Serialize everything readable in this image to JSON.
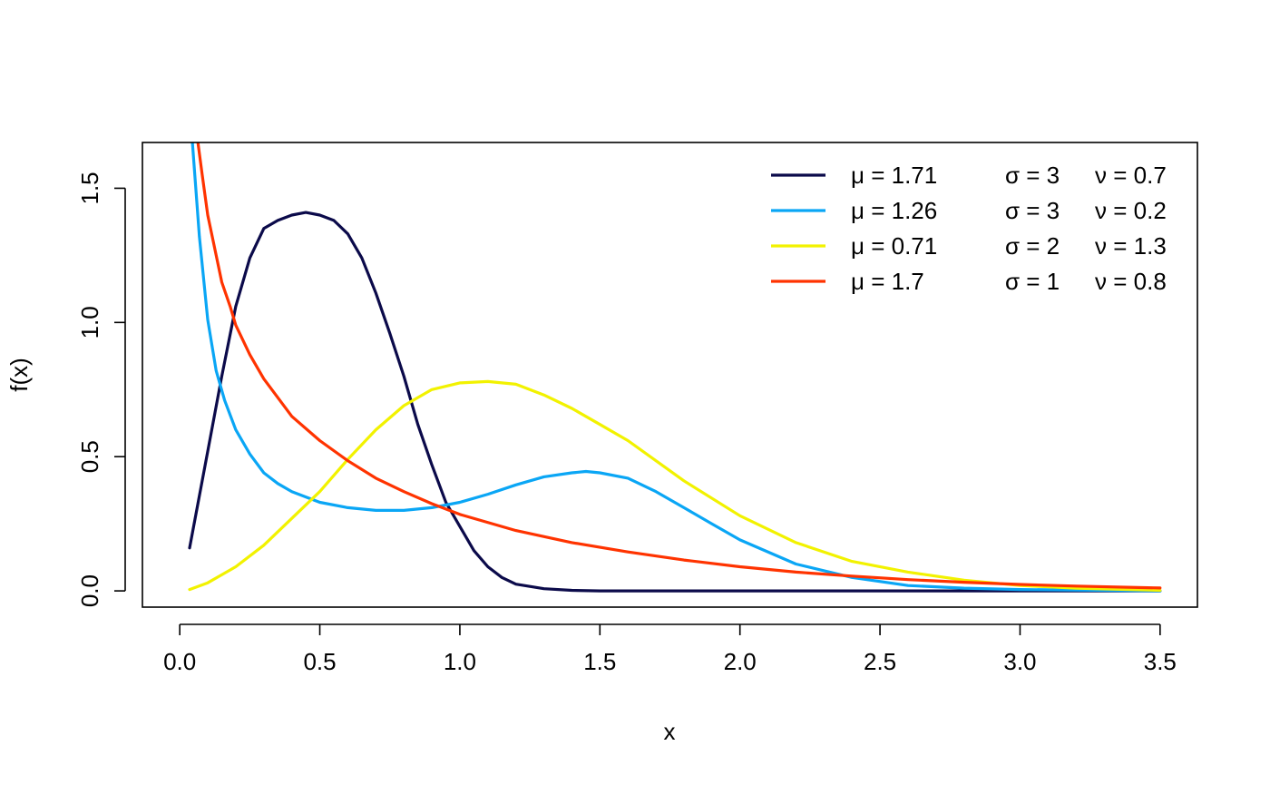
{
  "chart_data": {
    "type": "line",
    "title": "",
    "xlabel": "x",
    "ylabel": "f(x)",
    "xlim": [
      -0.1333,
      3.6333
    ],
    "ylim": [
      -0.0605,
      1.6705
    ],
    "x_ticks": [
      "0.0",
      "0.5",
      "1.0",
      "1.5",
      "2.0",
      "2.5",
      "3.0",
      "3.5"
    ],
    "y_ticks": [
      "0.0",
      "0.5",
      "1.0",
      "1.5"
    ],
    "grid": false,
    "legend_position": "top-right",
    "series": [
      {
        "name": "μ = 1.71      σ = 3   ν = 0.7",
        "legend": {
          "mu": "μ = 1.71",
          "sigma": "σ = 3",
          "nu": "ν = 0.7"
        },
        "color": "#0b0a4a",
        "x": [
          0.035,
          0.1,
          0.15,
          0.2,
          0.25,
          0.3,
          0.35,
          0.4,
          0.45,
          0.5,
          0.55,
          0.6,
          0.65,
          0.7,
          0.75,
          0.8,
          0.85,
          0.9,
          0.95,
          1.0,
          1.05,
          1.1,
          1.15,
          1.2,
          1.3,
          1.4,
          1.5,
          2.0,
          2.5,
          3.0,
          3.5
        ],
        "y": [
          0.16,
          0.52,
          0.8,
          1.06,
          1.24,
          1.35,
          1.38,
          1.4,
          1.41,
          1.4,
          1.38,
          1.33,
          1.24,
          1.11,
          0.96,
          0.8,
          0.62,
          0.47,
          0.33,
          0.24,
          0.15,
          0.09,
          0.05,
          0.025,
          0.008,
          0.002,
          0.0,
          0.0,
          0.0,
          0.0,
          0.0
        ]
      },
      {
        "name": "μ = 1.26      σ = 3   ν = 0.2",
        "legend": {
          "mu": "μ = 1.26",
          "sigma": "σ = 3",
          "nu": "ν = 0.2"
        },
        "color": "#0aa6f5",
        "x": [
          0.045,
          0.07,
          0.1,
          0.13,
          0.16,
          0.2,
          0.25,
          0.3,
          0.35,
          0.4,
          0.5,
          0.6,
          0.7,
          0.8,
          0.9,
          1.0,
          1.1,
          1.2,
          1.3,
          1.4,
          1.45,
          1.5,
          1.6,
          1.7,
          1.8,
          1.9,
          2.0,
          2.2,
          2.4,
          2.6,
          2.8,
          3.0,
          3.5
        ],
        "y": [
          1.67,
          1.32,
          1.01,
          0.82,
          0.71,
          0.6,
          0.51,
          0.44,
          0.4,
          0.37,
          0.33,
          0.31,
          0.3,
          0.3,
          0.31,
          0.33,
          0.36,
          0.395,
          0.425,
          0.44,
          0.445,
          0.44,
          0.42,
          0.37,
          0.31,
          0.25,
          0.19,
          0.1,
          0.05,
          0.02,
          0.01,
          0.005,
          0.0
        ]
      },
      {
        "name": "μ = 0.71      σ = 2   ν = 1.3",
        "legend": {
          "mu": "μ = 0.71",
          "sigma": "σ = 2",
          "nu": "ν = 1.3"
        },
        "color": "#f2f200",
        "x": [
          0.035,
          0.1,
          0.2,
          0.3,
          0.4,
          0.5,
          0.6,
          0.7,
          0.8,
          0.9,
          1.0,
          1.1,
          1.2,
          1.3,
          1.4,
          1.5,
          1.6,
          1.8,
          2.0,
          2.2,
          2.4,
          2.6,
          2.8,
          3.0,
          3.2,
          3.5
        ],
        "y": [
          0.005,
          0.03,
          0.09,
          0.17,
          0.27,
          0.37,
          0.49,
          0.6,
          0.69,
          0.75,
          0.775,
          0.78,
          0.77,
          0.73,
          0.68,
          0.62,
          0.56,
          0.41,
          0.28,
          0.18,
          0.11,
          0.07,
          0.04,
          0.02,
          0.01,
          0.002
        ]
      },
      {
        "name": "μ = 1.7        σ = 1   ν = 0.8",
        "legend": {
          "mu": "μ = 1.7",
          "sigma": "σ = 1",
          "nu": "ν = 0.8"
        },
        "color": "#ff3300",
        "x": [
          0.065,
          0.08,
          0.1,
          0.12,
          0.15,
          0.18,
          0.2,
          0.25,
          0.3,
          0.4,
          0.5,
          0.6,
          0.7,
          0.8,
          0.9,
          1.0,
          1.2,
          1.4,
          1.6,
          1.8,
          2.0,
          2.2,
          2.4,
          2.6,
          2.8,
          3.0,
          3.2,
          3.5
        ],
        "y": [
          1.67,
          1.55,
          1.4,
          1.3,
          1.15,
          1.06,
          0.99,
          0.88,
          0.79,
          0.65,
          0.56,
          0.485,
          0.42,
          0.37,
          0.325,
          0.285,
          0.225,
          0.18,
          0.145,
          0.115,
          0.09,
          0.07,
          0.055,
          0.042,
          0.032,
          0.024,
          0.018,
          0.011
        ]
      }
    ]
  }
}
